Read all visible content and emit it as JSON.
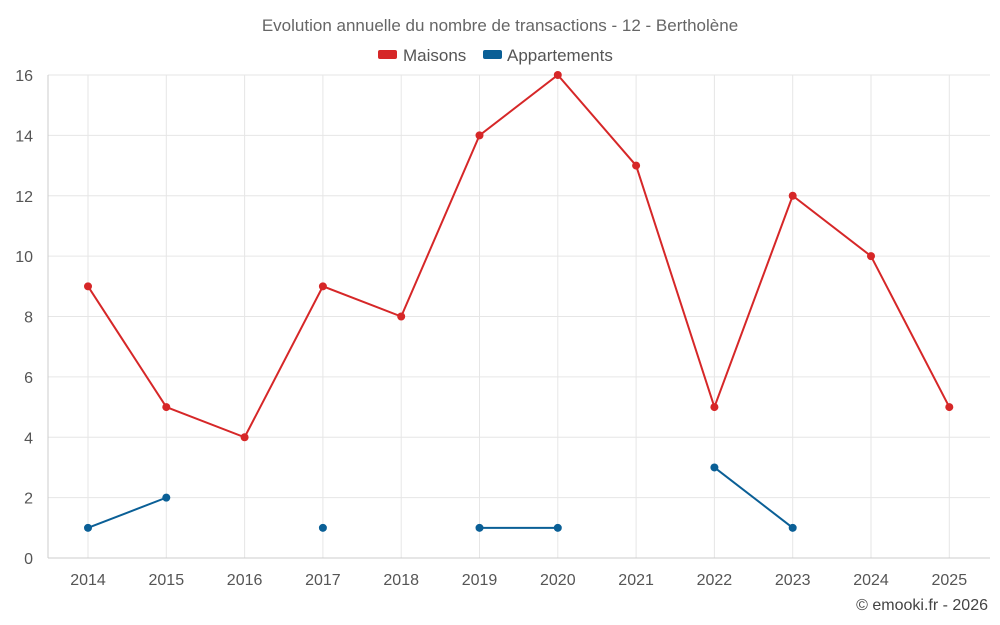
{
  "chart_data": {
    "type": "line",
    "title": "Evolution annuelle du nombre de transactions - 12 - Bertholène",
    "xlabel": "",
    "ylabel": "",
    "categories": [
      "2014",
      "2015",
      "2016",
      "2017",
      "2018",
      "2019",
      "2020",
      "2021",
      "2022",
      "2023",
      "2024",
      "2025"
    ],
    "ylim": [
      0,
      16
    ],
    "yticks": [
      0,
      2,
      4,
      6,
      8,
      10,
      12,
      14,
      16
    ],
    "grid": true,
    "legend_position": "top-center",
    "series": [
      {
        "name": "Maisons",
        "color": "#d62728",
        "values": [
          9,
          5,
          4,
          9,
          8,
          14,
          16,
          13,
          5,
          12,
          10,
          5
        ]
      },
      {
        "name": "Appartements",
        "color": "#0a5f96",
        "values": [
          1,
          2,
          null,
          1,
          null,
          1,
          1,
          null,
          3,
          1,
          null,
          null
        ]
      }
    ]
  },
  "credit": "© emooki.fr - 2026"
}
